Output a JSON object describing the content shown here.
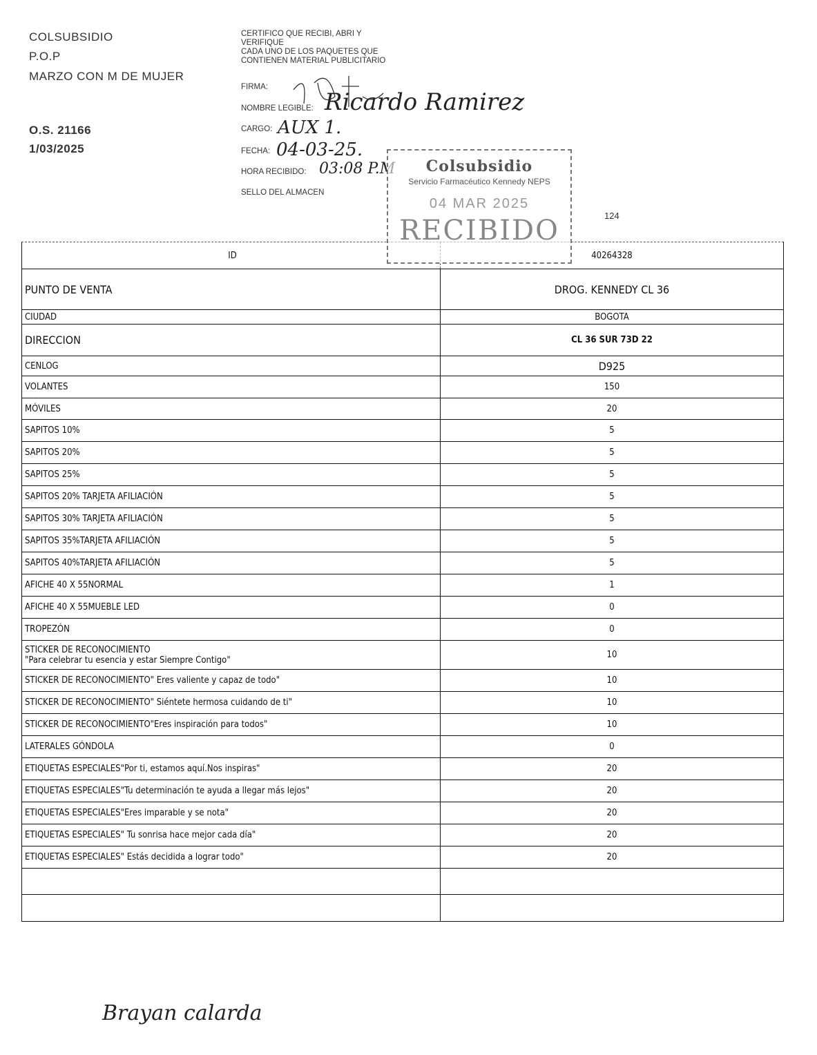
{
  "header": {
    "company": "COLSUBSIDIO",
    "type": "P.O.P",
    "campaign": "MARZO CON M DE MUJER",
    "order": "O.S. 21166",
    "date": "1/03/2025"
  },
  "certification": {
    "text_lines": [
      "CERTIFICO QUE RECIBI, ABRI Y",
      "VERIFIQUE",
      "CADA UNO DE LOS PAQUETES QUE",
      "CONTIENEN MATERIAL PUBLICITARIO"
    ],
    "firma_label": "FIRMA:",
    "nombre_label": "NOMBRE LEGIBLE:",
    "nombre_value": "Ricardo Ramirez",
    "cargo_label": "CARGO:",
    "cargo_value": "AUX 1.",
    "fecha_label": "FECHA:",
    "fecha_value": "04-03-25.",
    "hora_label": "HORA RECIBIDO:",
    "hora_value": "03:08 P.M",
    "sello_label": "SELLO DEL ALMACEN"
  },
  "stamp": {
    "brand": "Colsubsidio",
    "subtitle": "Servicio Farmacéutico Kennedy NEPS",
    "date": "04 MAR 2025",
    "status": "RECIBIDO"
  },
  "page_number": "124",
  "table": {
    "rows": [
      {
        "label": "ID",
        "value": "40264328"
      },
      {
        "label": "PUNTO DE VENTA",
        "value": "DROG. KENNEDY CL 36"
      },
      {
        "label": "CIUDAD",
        "value": "BOGOTA"
      },
      {
        "label": "DIRECCION",
        "value": "CL 36 SUR 73D 22"
      },
      {
        "label": "CENLOG",
        "value": "D925"
      },
      {
        "label": "VOLANTES",
        "value": "150"
      },
      {
        "label": "MÓVILES",
        "value": "20"
      },
      {
        "label": "SAPITOS 10%",
        "value": "5"
      },
      {
        "label": "SAPITOS 20%",
        "value": "5"
      },
      {
        "label": "SAPITOS 25%",
        "value": "5"
      },
      {
        "label": "SAPITOS 20% TARJETA AFILIACIÓN",
        "value": "5"
      },
      {
        "label": "SAPITOS 30% TARJETA AFILIACIÓN",
        "value": "5"
      },
      {
        "label": "SAPITOS 35%TARJETA AFILIACIÓN",
        "value": "5"
      },
      {
        "label": "SAPITOS 40%TARJETA AFILIACIÓN",
        "value": "5"
      },
      {
        "label": "AFICHE 40 X 55NORMAL",
        "value": "1"
      },
      {
        "label": "AFICHE 40 X 55MUEBLE LED",
        "value": "0"
      },
      {
        "label": "TROPEZÓN",
        "value": "0"
      },
      {
        "label": "STICKER DE RECONOCIMIENTO",
        "label2": "\"Para celebrar tu esencia y estar Siempre Contigo\"",
        "value": "10"
      },
      {
        "label": "STICKER DE RECONOCIMIENTO\" Eres valiente y capaz de todo\"",
        "value": "10"
      },
      {
        "label": "STICKER DE RECONOCIMIENTO\" Siéntete hermosa cuidando de ti\"",
        "value": "10"
      },
      {
        "label": "STICKER DE RECONOCIMIENTO\"Eres inspiración para todos\"",
        "value": "10"
      },
      {
        "label": "LATERALES GÓNDOLA",
        "value": "0"
      },
      {
        "label": "ETIQUETAS ESPECIALES\"Por ti, estamos aquí.Nos inspiras\"",
        "value": "20"
      },
      {
        "label": "ETIQUETAS ESPECIALES\"Tu determinación te ayuda a llegar más lejos\"",
        "value": "20"
      },
      {
        "label": "ETIQUETAS ESPECIALES\"Eres imparable y se nota\"",
        "value": "20"
      },
      {
        "label": "ETIQUETAS ESPECIALES\" Tu sonrisa hace mejor cada día\"",
        "value": "20"
      },
      {
        "label": "ETIQUETAS ESPECIALES\" Estás decidida a lograr todo\"",
        "value": "20"
      },
      {
        "label": "",
        "value": ""
      },
      {
        "label": "",
        "value": ""
      }
    ]
  },
  "footer_signature": "Brayan calarda"
}
